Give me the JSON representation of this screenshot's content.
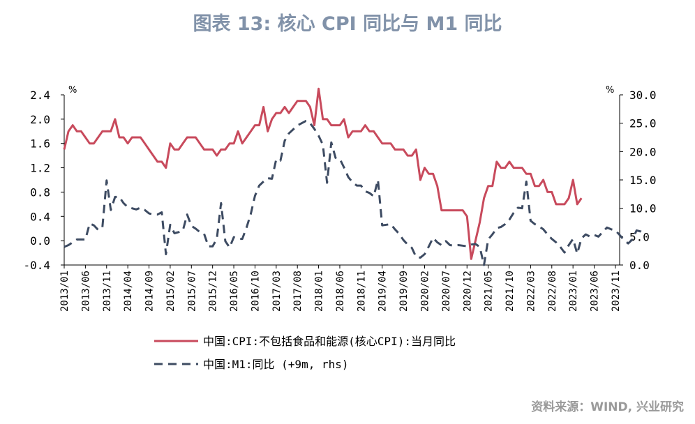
{
  "title": "图表 13: 核心 CPI 同比与 M1 同比",
  "source": "资料来源：WIND, 兴业研究",
  "colors": {
    "cpi": "#c84a5c",
    "m1": "#3d4b62",
    "axis": "#000000",
    "title": "#8192a9"
  },
  "chart_data": {
    "type": "line",
    "grid": false,
    "legend_position": "bottom",
    "y_left": {
      "unit": "%",
      "ylim": [
        -0.4,
        2.4
      ],
      "ticks": [
        -0.4,
        0.0,
        0.4,
        0.8,
        1.2,
        1.6,
        2.0,
        2.4
      ],
      "tick_labels": [
        "-0.4",
        "0.0",
        "0.4",
        "0.8",
        "1.2",
        "1.6",
        "2.0",
        "2.4"
      ]
    },
    "y_right": {
      "unit": "%",
      "ylim": [
        0,
        30
      ],
      "ticks": [
        0,
        5,
        10,
        15,
        20,
        25,
        30
      ],
      "tick_labels": [
        "0.0",
        "5.0",
        "10.0",
        "15.0",
        "20.0",
        "25.0",
        "30.0"
      ]
    },
    "x_range": [
      "2013/01",
      "2023/12"
    ],
    "x_tick_labels": [
      "2013/01",
      "2013/06",
      "2013/11",
      "2014/04",
      "2014/09",
      "2015/02",
      "2015/07",
      "2015/12",
      "2016/05",
      "2016/10",
      "2017/03",
      "2017/08",
      "2018/01",
      "2018/06",
      "2018/11",
      "2019/04",
      "2019/09",
      "2020/02",
      "2020/07",
      "2020/12",
      "2021/05",
      "2021/10",
      "2022/03",
      "2022/08",
      "2023/01",
      "2023/06",
      "2023/11"
    ],
    "series": [
      {
        "name": "中国:CPI:不包括食品和能源(核心CPI):当月同比",
        "axis": "left",
        "style": "solid",
        "start": "2013/01",
        "values": [
          1.5,
          1.8,
          1.9,
          1.8,
          1.8,
          1.7,
          1.6,
          1.6,
          1.7,
          1.8,
          1.8,
          1.8,
          2.0,
          1.7,
          1.7,
          1.6,
          1.7,
          1.7,
          1.7,
          1.6,
          1.5,
          1.4,
          1.3,
          1.3,
          1.2,
          1.6,
          1.5,
          1.5,
          1.6,
          1.7,
          1.7,
          1.7,
          1.6,
          1.5,
          1.5,
          1.5,
          1.4,
          1.5,
          1.5,
          1.6,
          1.6,
          1.8,
          1.6,
          1.7,
          1.8,
          1.9,
          1.9,
          2.2,
          1.8,
          2.0,
          2.1,
          2.1,
          2.2,
          2.1,
          2.2,
          2.3,
          2.3,
          2.3,
          2.2,
          1.9,
          2.5,
          2.0,
          2.0,
          1.9,
          1.9,
          1.9,
          2.0,
          1.7,
          1.8,
          1.8,
          1.8,
          1.9,
          1.8,
          1.8,
          1.7,
          1.6,
          1.6,
          1.6,
          1.5,
          1.5,
          1.5,
          1.4,
          1.4,
          1.5,
          1.0,
          1.2,
          1.1,
          1.1,
          0.9,
          0.5,
          0.5,
          0.5,
          0.5,
          0.5,
          0.5,
          0.4,
          -0.3,
          0.0,
          0.3,
          0.7,
          0.9,
          0.9,
          1.3,
          1.2,
          1.2,
          1.3,
          1.2,
          1.2,
          1.2,
          1.1,
          1.1,
          0.9,
          0.9,
          1.0,
          0.8,
          0.8,
          0.6,
          0.6,
          0.6,
          0.7,
          1.0,
          0.6,
          0.7
        ]
      },
      {
        "name": "中国:M1:同比 (+9m, rhs)",
        "axis": "right",
        "style": "dashed",
        "start": "2013/01",
        "values": [
          3.2,
          3.5,
          4.0,
          4.5,
          4.5,
          4.5,
          7.3,
          7.0,
          6.2,
          6.6,
          14.9,
          9.7,
          12.0,
          12.0,
          10.9,
          10.2,
          10.0,
          9.8,
          10.1,
          9.7,
          9.1,
          8.9,
          8.9,
          9.3,
          1.9,
          7.1,
          5.6,
          5.8,
          6.1,
          8.9,
          6.9,
          6.4,
          5.8,
          5.5,
          3.3,
          3.3,
          4.6,
          10.9,
          4.2,
          3.1,
          4.9,
          4.6,
          4.6,
          6.6,
          9.0,
          12.2,
          14.0,
          14.7,
          15.3,
          15.2,
          18.6,
          18.4,
          21.9,
          23.2,
          23.9,
          24.6,
          25.0,
          25.4,
          25.0,
          24.0,
          22.8,
          21.2,
          14.5,
          21.6,
          18.9,
          18.7,
          17.2,
          15.5,
          14.6,
          14.0,
          14.0,
          13.0,
          12.7,
          12.1,
          15.0,
          7.0,
          7.1,
          7.2,
          6.3,
          5.5,
          4.4,
          3.6,
          3.0,
          1.4,
          1.3,
          1.9,
          3.3,
          4.8,
          4.0,
          3.5,
          4.2,
          3.5,
          3.4,
          3.5,
          3.4,
          3.3,
          3.6,
          3.7,
          3.2,
          0.0,
          4.5,
          5.4,
          6.5,
          6.7,
          7.2,
          8.0,
          9.2,
          10.1,
          10.0,
          14.7,
          7.8,
          7.2,
          6.8,
          6.3,
          5.4,
          4.6,
          4.0,
          3.2,
          2.2,
          3.5,
          4.6,
          2.0,
          4.7,
          5.4,
          5.0,
          5.3,
          5.0,
          5.8,
          6.6,
          6.3,
          6.1,
          5.3,
          4.4,
          3.8,
          4.5,
          6.1,
          5.9,
          5.2
        ]
      }
    ]
  }
}
